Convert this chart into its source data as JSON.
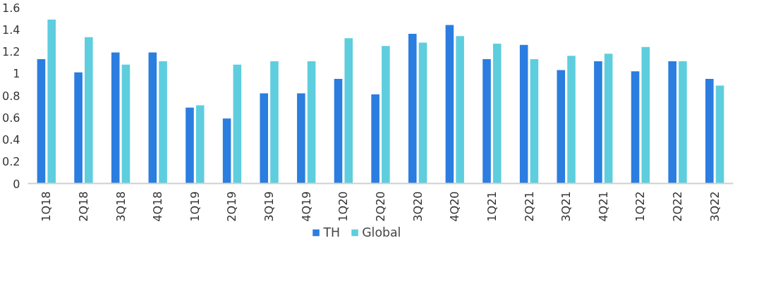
{
  "chart_data": {
    "type": "bar",
    "categories": [
      "1Q18",
      "2Q18",
      "3Q18",
      "4Q18",
      "1Q19",
      "2Q19",
      "3Q19",
      "4Q19",
      "1Q20",
      "2Q20",
      "3Q20",
      "4Q20",
      "1Q21",
      "2Q21",
      "3Q21",
      "4Q21",
      "1Q22",
      "2Q22",
      "3Q22"
    ],
    "series": [
      {
        "name": "TH",
        "color": "#2b7de0",
        "values": [
          1.13,
          1.01,
          1.19,
          1.19,
          0.69,
          0.59,
          0.82,
          0.82,
          0.95,
          0.81,
          1.36,
          1.44,
          1.13,
          1.26,
          1.03,
          1.11,
          1.02,
          1.11,
          0.95
        ]
      },
      {
        "name": "Global",
        "color": "#5ecede",
        "values": [
          1.49,
          1.33,
          1.08,
          1.11,
          0.71,
          1.08,
          1.11,
          1.11,
          1.32,
          1.25,
          1.28,
          1.34,
          1.27,
          1.13,
          1.16,
          1.18,
          1.24,
          1.11,
          0.89
        ]
      }
    ],
    "ylim": [
      0,
      1.6
    ],
    "yticks": [
      0,
      0.2,
      0.4,
      0.6,
      0.8,
      1,
      1.2,
      1.4,
      1.6
    ],
    "grid": false,
    "legend": "bottom"
  }
}
